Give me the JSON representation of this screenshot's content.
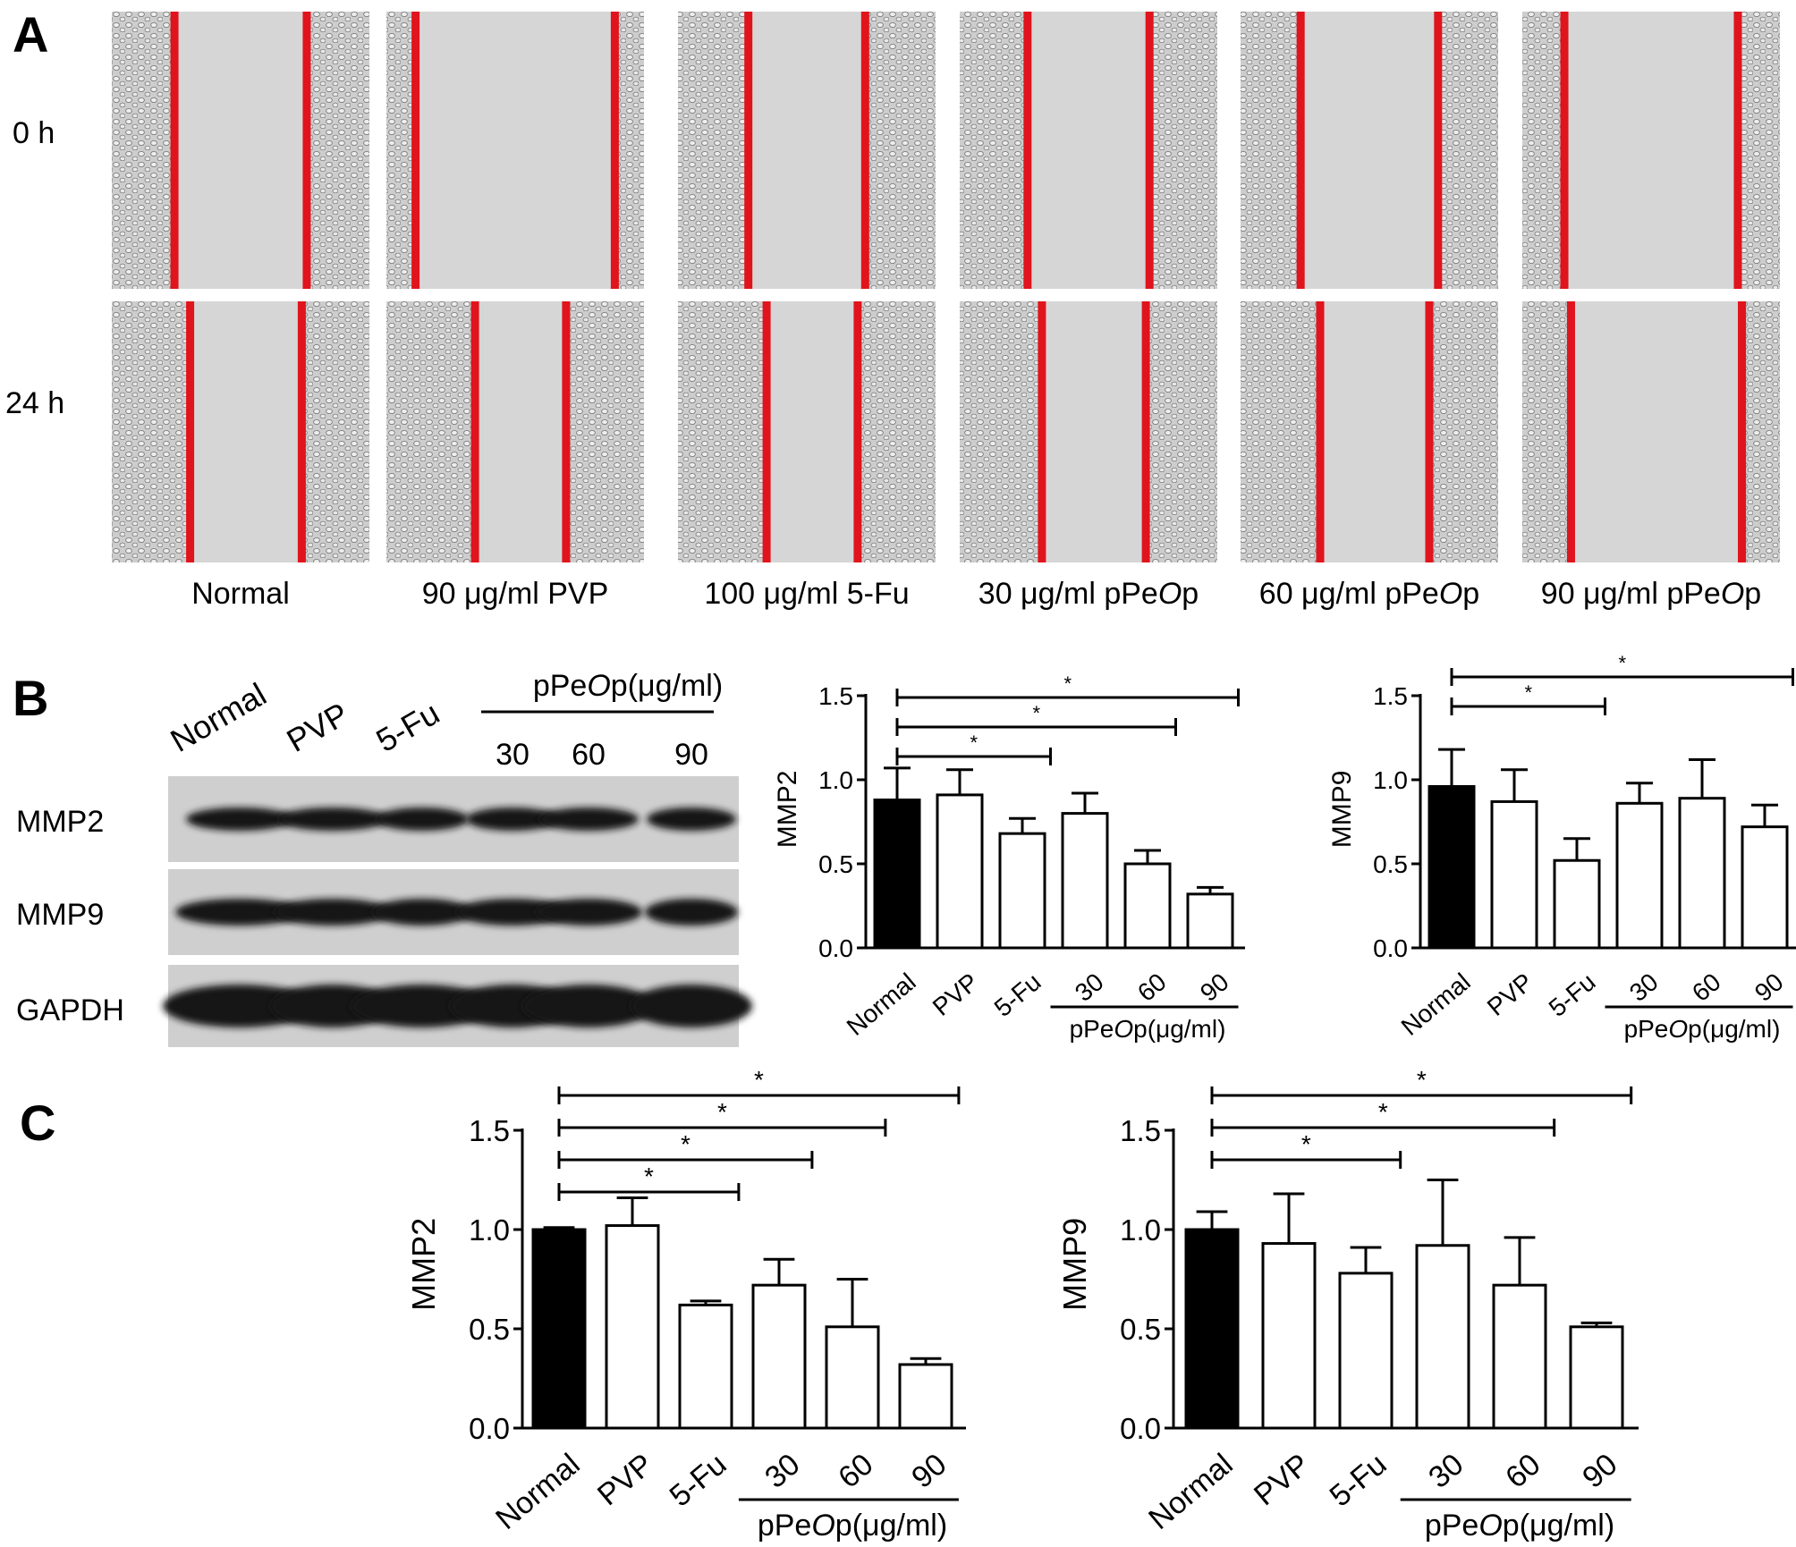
{
  "panel_a": {
    "letter": "A",
    "row_labels": [
      "0 h",
      "24 h"
    ],
    "conditions": [
      "Normal",
      "90 μg/ml PVP",
      "100 μg/ml 5-Fu",
      "30 μg/ml pPeOp",
      "60 μg/ml pPeOp",
      "90 μg/ml pPeOp"
    ],
    "wound_gap_fraction_0h": [
      0.51,
      0.77,
      0.45,
      0.47,
      0.53,
      0.67
    ],
    "wound_gap_fraction_24h": [
      0.43,
      0.35,
      0.35,
      0.4,
      0.42,
      0.66
    ]
  },
  "panel_b": {
    "letter": "B",
    "blot_lane_labels": [
      "Normal",
      "PVP",
      "5-Fu"
    ],
    "blot_group_label": "pPeOp(μg/ml)",
    "blot_group_lanes": [
      "30",
      "60",
      "90"
    ],
    "blot_rows": [
      "MMP2",
      "MMP9",
      "GAPDH"
    ]
  },
  "panel_c": {
    "letter": "C"
  },
  "chart_data": [
    {
      "id": "B-MMP2",
      "type": "bar",
      "ylabel": "MMP2",
      "ylim": [
        0,
        1.5
      ],
      "yticks": [
        "0.0",
        "0.5",
        "1.0",
        "1.5"
      ],
      "categories": [
        "Normal",
        "PVP",
        "5-Fu",
        "30",
        "60",
        "90"
      ],
      "group_label": "pPeOp(μg/ml)",
      "values": [
        0.88,
        0.91,
        0.68,
        0.8,
        0.5,
        0.32
      ],
      "errors": [
        0.19,
        0.15,
        0.09,
        0.12,
        0.08,
        0.04
      ],
      "bar_colors": [
        "#000000",
        "#ffffff",
        "#ffffff",
        "#ffffff",
        "#ffffff",
        "#ffffff"
      ],
      "significance": [
        {
          "from": "Normal",
          "to": "5-Fu",
          "label": "*"
        },
        {
          "from": "Normal",
          "to": "60",
          "label": "*"
        },
        {
          "from": "Normal",
          "to": "90",
          "label": "*"
        }
      ]
    },
    {
      "id": "B-MMP9",
      "type": "bar",
      "ylabel": "MMP9",
      "ylim": [
        0,
        1.5
      ],
      "yticks": [
        "0.0",
        "0.5",
        "1.0",
        "1.5"
      ],
      "categories": [
        "Normal",
        "PVP",
        "5-Fu",
        "30",
        "60",
        "90"
      ],
      "group_label": "pPeOp(μg/ml)",
      "values": [
        0.96,
        0.87,
        0.52,
        0.86,
        0.89,
        0.72
      ],
      "errors": [
        0.22,
        0.19,
        0.13,
        0.12,
        0.23,
        0.13
      ],
      "bar_colors": [
        "#000000",
        "#ffffff",
        "#ffffff",
        "#ffffff",
        "#ffffff",
        "#ffffff"
      ],
      "significance": [
        {
          "from": "Normal",
          "to": "5-Fu",
          "label": "*"
        },
        {
          "from": "Normal",
          "to": "90",
          "label": "*"
        }
      ]
    },
    {
      "id": "C-MMP2",
      "type": "bar",
      "ylabel": "MMP2",
      "ylim": [
        0,
        1.5
      ],
      "yticks": [
        "0.0",
        "0.5",
        "1.0",
        "1.5"
      ],
      "categories": [
        "Normal",
        "PVP",
        "5-Fu",
        "30",
        "60",
        "90"
      ],
      "group_label": "pPeOp(μg/ml)",
      "values": [
        1.0,
        1.02,
        0.62,
        0.72,
        0.51,
        0.32
      ],
      "errors": [
        0.01,
        0.14,
        0.02,
        0.13,
        0.24,
        0.03
      ],
      "bar_colors": [
        "#000000",
        "#ffffff",
        "#ffffff",
        "#ffffff",
        "#ffffff",
        "#ffffff"
      ],
      "significance": [
        {
          "from": "Normal",
          "to": "5-Fu",
          "label": "*"
        },
        {
          "from": "Normal",
          "to": "30",
          "label": "*"
        },
        {
          "from": "Normal",
          "to": "60",
          "label": "*"
        },
        {
          "from": "Normal",
          "to": "90",
          "label": "*"
        }
      ]
    },
    {
      "id": "C-MMP9",
      "type": "bar",
      "ylabel": "MMP9",
      "ylim": [
        0,
        1.5
      ],
      "yticks": [
        "0.0",
        "0.5",
        "1.0",
        "1.5"
      ],
      "categories": [
        "Normal",
        "PVP",
        "5-Fu",
        "30",
        "60",
        "90"
      ],
      "group_label": "pPeOp(μg/ml)",
      "values": [
        1.0,
        0.93,
        0.78,
        0.92,
        0.72,
        0.51
      ],
      "errors": [
        0.09,
        0.25,
        0.13,
        0.33,
        0.24,
        0.02
      ],
      "bar_colors": [
        "#000000",
        "#ffffff",
        "#ffffff",
        "#ffffff",
        "#ffffff",
        "#ffffff"
      ],
      "significance": [
        {
          "from": "Normal",
          "to": "5-Fu",
          "label": "*"
        },
        {
          "from": "Normal",
          "to": "60",
          "label": "*"
        },
        {
          "from": "Normal",
          "to": "90",
          "label": "*"
        }
      ]
    }
  ],
  "colors": {
    "wound_line": "#e0141c",
    "micrograph_bg": "#d6d6d6",
    "cell_texture": "#8a8a8a",
    "blot_band": "#161616",
    "blot_bg": "#cfcfcf"
  }
}
